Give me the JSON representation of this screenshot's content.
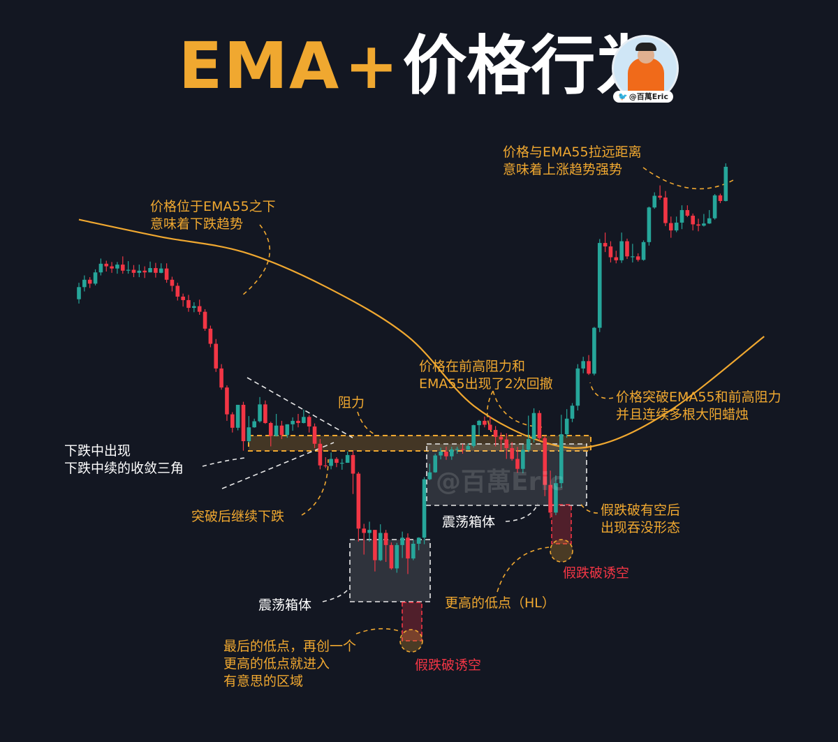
{
  "title": {
    "part1": "EMA",
    "plus": "+",
    "part2": "价格行为"
  },
  "author": {
    "handle": "@百萬Eric",
    "watermark": "@百萬Eric"
  },
  "colors": {
    "bg": "#131722",
    "up": "#26a69a",
    "down": "#f23645",
    "ema": "#f0a830",
    "annotation": "#f0a830",
    "warning": "#f23645"
  },
  "chart_data": {
    "type": "candlestick",
    "indicator": "EMA55",
    "ylim": [
      0,
      100
    ],
    "candles": [
      [
        73.6,
        76.4,
        77.4,
        72.6
      ],
      [
        76.4,
        78.1,
        79.1,
        75.4
      ],
      [
        78.1,
        77.2,
        78.7,
        76.2
      ],
      [
        77.2,
        79.8,
        80.5,
        76.8
      ],
      [
        79.8,
        81.8,
        83.0,
        79.1
      ],
      [
        81.8,
        81.2,
        82.5,
        80.0
      ],
      [
        81.2,
        80.7,
        82.2,
        79.7
      ],
      [
        80.7,
        81.6,
        82.2,
        79.5
      ],
      [
        81.6,
        80.2,
        83.5,
        79.5
      ],
      [
        80.2,
        80.4,
        82.4,
        79.5
      ],
      [
        80.4,
        79.7,
        81.5,
        78.7
      ],
      [
        79.7,
        80.2,
        81.6,
        78.7
      ],
      [
        80.2,
        79.8,
        81.2,
        78.5
      ],
      [
        79.8,
        80.8,
        82.3,
        79.8
      ],
      [
        80.8,
        79.7,
        82.0,
        78.6
      ],
      [
        79.7,
        80.7,
        81.9,
        79.6
      ],
      [
        80.7,
        78.1,
        81.9,
        77.4
      ],
      [
        78.1,
        76.7,
        78.8,
        75.4
      ],
      [
        76.7,
        74.2,
        77.4,
        73.3
      ],
      [
        74.2,
        73.4,
        74.9,
        71.9
      ],
      [
        73.4,
        71.6,
        74.6,
        70.7
      ],
      [
        71.6,
        72.0,
        72.9,
        70.6
      ],
      [
        72.0,
        70.7,
        73.5,
        70.0
      ],
      [
        70.7,
        66.8,
        71.3,
        66.3
      ],
      [
        66.8,
        63.3,
        67.5,
        62.5
      ],
      [
        63.3,
        57.6,
        64.4,
        56.8
      ],
      [
        57.6,
        53.2,
        58.6,
        52.7
      ],
      [
        53.2,
        47.0,
        53.7,
        45.5
      ],
      [
        47.0,
        43.9,
        47.5,
        42.8
      ],
      [
        43.9,
        49.2,
        49.2,
        43.3
      ],
      [
        49.2,
        40.8,
        49.9,
        38.6
      ],
      [
        40.8,
        44.0,
        46.6,
        40.4
      ],
      [
        44.0,
        45.4,
        46.0,
        43.9
      ],
      [
        45.4,
        49.3,
        51.0,
        45.1
      ],
      [
        49.3,
        45.0,
        50.2,
        44.8
      ],
      [
        45.0,
        42.0,
        45.3,
        39.6
      ],
      [
        42.0,
        44.4,
        47.1,
        41.9
      ],
      [
        44.4,
        42.2,
        45.5,
        41.3
      ],
      [
        42.2,
        44.7,
        44.7,
        41.6
      ],
      [
        44.7,
        45.5,
        46.3,
        43.2
      ],
      [
        45.5,
        45.0,
        47.1,
        44.0
      ],
      [
        45.0,
        46.4,
        48.1,
        44.9
      ],
      [
        46.4,
        44.2,
        46.8,
        42.8
      ],
      [
        44.2,
        40.2,
        44.9,
        39.2
      ],
      [
        40.2,
        35.2,
        41.3,
        34.3
      ],
      [
        35.2,
        35.1,
        37.1,
        34.6
      ],
      [
        35.1,
        36.7,
        38.2,
        34.3
      ],
      [
        36.7,
        35.8,
        37.1,
        34.8
      ],
      [
        35.8,
        35.8,
        36.7,
        34.2
      ],
      [
        35.8,
        37.6,
        38.4,
        35.8
      ],
      [
        37.6,
        33.3,
        38.5,
        28.6
      ],
      [
        33.3,
        20.6,
        33.7,
        17.6
      ],
      [
        20.6,
        19.6,
        21.7,
        14.6
      ],
      [
        19.6,
        20.3,
        22.2,
        17.6
      ],
      [
        20.3,
        13.3,
        20.3,
        10.7
      ],
      [
        13.3,
        19.6,
        21.6,
        13.1
      ],
      [
        19.6,
        16.8,
        20.3,
        12.9
      ],
      [
        16.8,
        11.4,
        17.4,
        11.1
      ],
      [
        11.4,
        16.8,
        17.3,
        10.4
      ],
      [
        16.8,
        18.5,
        19.9,
        13.8
      ],
      [
        18.5,
        13.7,
        19.5,
        10.1
      ],
      [
        13.7,
        17.1,
        17.9,
        13.3
      ],
      [
        17.1,
        18.5,
        18.6,
        15.6
      ],
      [
        18.5,
        32.0,
        32.5,
        17.0
      ],
      [
        32.0,
        33.6,
        35.6,
        31.8
      ],
      [
        33.6,
        37.5,
        37.9,
        33.5
      ],
      [
        37.5,
        38.4,
        39.3,
        36.6
      ],
      [
        38.4,
        37.3,
        39.5,
        36.5
      ],
      [
        37.3,
        38.9,
        39.5,
        36.5
      ],
      [
        38.9,
        39.0,
        39.5,
        37.9
      ],
      [
        39.0,
        38.8,
        40.2,
        37.9
      ],
      [
        38.8,
        39.7,
        40.3,
        38.8
      ],
      [
        39.7,
        44.5,
        44.6,
        39.3
      ],
      [
        44.5,
        45.5,
        45.7,
        42.2
      ],
      [
        45.5,
        44.6,
        46.5,
        44.0
      ],
      [
        44.6,
        43.4,
        46.6,
        43.4
      ],
      [
        43.4,
        41.8,
        44.3,
        39.6
      ],
      [
        41.8,
        41.2,
        42.8,
        38.6
      ],
      [
        41.2,
        39.2,
        42.6,
        36.7
      ],
      [
        39.2,
        36.7,
        40.6,
        36.3
      ],
      [
        36.7,
        34.4,
        39.5,
        33.5
      ],
      [
        34.4,
        38.8,
        40.0,
        33.4
      ],
      [
        38.8,
        41.3,
        46.7,
        38.3
      ],
      [
        41.3,
        47.3,
        48.4,
        40.5
      ],
      [
        47.3,
        41.5,
        47.9,
        40.9
      ],
      [
        41.5,
        30.7,
        42.1,
        28.1
      ],
      [
        30.7,
        24.3,
        34.0,
        23.0
      ],
      [
        24.3,
        31.1,
        32.9,
        23.7
      ],
      [
        31.1,
        42.4,
        46.9,
        30.0
      ],
      [
        42.4,
        46.0,
        48.2,
        41.6
      ],
      [
        46.0,
        49.0,
        49.6,
        45.2
      ],
      [
        49.0,
        57.6,
        58.6,
        47.9
      ],
      [
        57.6,
        59.3,
        60.3,
        56.5
      ],
      [
        59.3,
        56.4,
        60.7,
        56.1
      ],
      [
        56.4,
        67.0,
        67.2,
        56.0
      ],
      [
        67.0,
        86.6,
        87.5,
        66.0
      ],
      [
        86.6,
        85.8,
        89.0,
        84.5
      ],
      [
        85.8,
        83.3,
        87.0,
        82.1
      ],
      [
        83.3,
        82.6,
        84.8,
        81.9
      ],
      [
        82.6,
        87.0,
        89.0,
        82.0
      ],
      [
        87.0,
        83.5,
        87.6,
        82.9
      ],
      [
        83.5,
        83.5,
        86.4,
        82.1
      ],
      [
        83.5,
        82.7,
        84.2,
        82.3
      ],
      [
        82.7,
        86.8,
        87.2,
        82.5
      ],
      [
        86.8,
        94.8,
        95.0,
        86.0
      ],
      [
        94.8,
        97.5,
        98.3,
        94.5
      ],
      [
        97.5,
        97.1,
        99.9,
        96.6
      ],
      [
        97.1,
        91.2,
        98.6,
        90.5
      ],
      [
        91.2,
        89.5,
        92.7,
        87.8
      ],
      [
        89.5,
        91.3,
        92.7,
        89.1
      ],
      [
        91.3,
        94.2,
        95.3,
        89.8
      ],
      [
        94.2,
        92.9,
        95.3,
        92.6
      ],
      [
        92.9,
        90.9,
        93.4,
        89.5
      ],
      [
        90.9,
        90.6,
        92.2,
        89.3
      ],
      [
        90.6,
        91.1,
        93.3,
        90.4
      ],
      [
        91.1,
        92.3,
        94.2,
        91.0
      ],
      [
        92.3,
        97.6,
        97.9,
        92.0
      ],
      [
        97.6,
        96.3,
        98.0,
        95.8
      ],
      [
        96.3,
        104.2,
        105.0,
        96.2
      ]
    ],
    "ema55": [
      [
        0,
        92.0
      ],
      [
        15,
        88.0
      ],
      [
        30,
        84.5
      ],
      [
        45,
        76.5
      ],
      [
        60,
        65.0
      ],
      [
        72,
        49.0
      ],
      [
        85,
        40.5
      ],
      [
        95,
        40.0
      ],
      [
        108,
        48.0
      ],
      [
        125,
        65.0
      ]
    ],
    "resistance_zone": {
      "low": 39.0,
      "high": 41.3
    },
    "annotations": [
      {
        "id": "below-ema",
        "lines": [
          "价格位于EMA55之下",
          "意味着下跌趋势"
        ],
        "color": "orange"
      },
      {
        "id": "triangle",
        "lines": [
          "下跌中出现",
          "下跌中续的收敛三角"
        ],
        "color": "white"
      },
      {
        "id": "continue-down",
        "lines": [
          "突破后继续下跌"
        ],
        "color": "orange"
      },
      {
        "id": "resistance",
        "lines": [
          "阻力"
        ],
        "color": "orange"
      },
      {
        "id": "box1",
        "lines": [
          "震荡箱体"
        ],
        "color": "white"
      },
      {
        "id": "last-low",
        "lines": [
          "最后的低点，再创一个",
          "更高的低点就进入",
          "有意思的区域"
        ],
        "color": "orange"
      },
      {
        "id": "fake-break-1",
        "lines": [
          "假跌破诱空"
        ],
        "color": "red"
      },
      {
        "id": "two-pullbacks",
        "lines": [
          "价格在前高阻力和",
          "EMA55出现了2次回撤"
        ],
        "color": "orange"
      },
      {
        "id": "box2",
        "lines": [
          "震荡箱体"
        ],
        "color": "white"
      },
      {
        "id": "higher-low",
        "lines": [
          "更高的低点（HL）"
        ],
        "color": "orange"
      },
      {
        "id": "engulf",
        "lines": [
          "假跌破有空后",
          "出现吞没形态"
        ],
        "color": "orange"
      },
      {
        "id": "fake-break-2",
        "lines": [
          "假跌破诱空"
        ],
        "color": "red"
      },
      {
        "id": "breakout",
        "lines": [
          "价格突破EMA55和前高阻力",
          "并且连续多根大阳蜡烛"
        ],
        "color": "orange"
      },
      {
        "id": "far-from-ema",
        "lines": [
          "价格与EMA55拉远距离",
          "意味着上涨趋势强势"
        ],
        "color": "orange"
      }
    ]
  }
}
